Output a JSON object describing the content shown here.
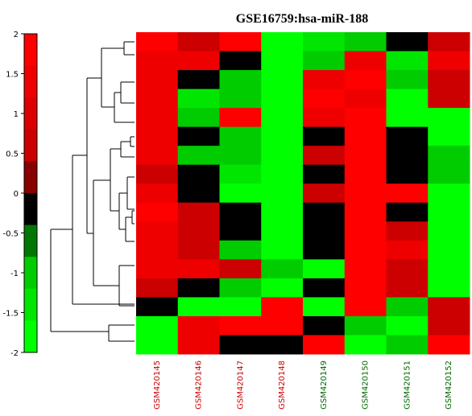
{
  "chart_data": {
    "type": "heatmap",
    "title": "GSE16759:hsa-miR-188",
    "columns": [
      {
        "label": "GSM420145",
        "color": "#cc0000"
      },
      {
        "label": "GSM420146",
        "color": "#cc0000"
      },
      {
        "label": "GSM420147",
        "color": "#cc0000"
      },
      {
        "label": "GSM420148",
        "color": "#cc0000"
      },
      {
        "label": "GSM420149",
        "color": "#006600"
      },
      {
        "label": "GSM420150",
        "color": "#006600"
      },
      {
        "label": "GSM420151",
        "color": "#006600"
      },
      {
        "label": "GSM420152",
        "color": "#006600"
      }
    ],
    "colorbar": {
      "ticks": [
        "2",
        "1.5",
        "1",
        "0.5",
        "0",
        "-0.5",
        "-1",
        "-1.5",
        "-2"
      ],
      "range": [
        -2,
        2
      ],
      "colors": [
        "#ff0000",
        "#ee0000",
        "#dd0000",
        "#cc0000",
        "#880000",
        "#000000",
        "#007700",
        "#00cc00",
        "#00e600",
        "#00ff00"
      ]
    },
    "values": [
      [
        2.0,
        0.6,
        1.6,
        -2.0,
        -1.2,
        -0.8,
        0.0,
        0.6
      ],
      [
        1.3,
        1.3,
        0.0,
        -2.0,
        -0.8,
        1.3,
        -1.4,
        1.4
      ],
      [
        1.3,
        0.0,
        -0.8,
        -2.0,
        1.4,
        1.8,
        -0.8,
        0.7
      ],
      [
        1.3,
        -1.4,
        -0.8,
        -2.0,
        1.8,
        1.5,
        -1.6,
        0.7
      ],
      [
        1.3,
        -0.8,
        1.8,
        -2.0,
        1.4,
        1.7,
        -1.6,
        -1.6
      ],
      [
        1.3,
        0.0,
        -0.8,
        -2.0,
        0.0,
        1.8,
        0.0,
        -1.6
      ],
      [
        1.3,
        -0.8,
        -0.8,
        -2.0,
        0.6,
        1.8,
        0.0,
        -0.8
      ],
      [
        0.6,
        0.0,
        -1.5,
        -2.0,
        0.0,
        1.8,
        0.0,
        -0.8
      ],
      [
        1.3,
        0.0,
        -1.8,
        -2.0,
        0.6,
        1.8,
        1.8,
        -1.6
      ],
      [
        1.8,
        0.6,
        0.0,
        -2.0,
        0.0,
        1.8,
        0.0,
        -1.6
      ],
      [
        1.3,
        0.6,
        0.0,
        -2.0,
        0.0,
        1.8,
        0.6,
        -2.0
      ],
      [
        1.3,
        0.6,
        -0.8,
        -2.0,
        0.0,
        1.8,
        1.3,
        -2.0
      ],
      [
        1.3,
        1.3,
        0.6,
        -0.8,
        -1.6,
        1.8,
        0.6,
        -2.0
      ],
      [
        0.6,
        0.0,
        -0.8,
        -1.6,
        0.0,
        1.8,
        0.6,
        -2.0
      ],
      [
        0.0,
        -1.6,
        -1.6,
        1.8,
        -2.0,
        1.8,
        -0.8,
        0.6
      ],
      [
        -2.0,
        1.3,
        1.8,
        1.8,
        0.0,
        -0.8,
        -2.0,
        0.6
      ],
      [
        -2.0,
        1.3,
        0.0,
        0.0,
        1.8,
        -2.0,
        -0.8,
        1.8
      ]
    ]
  }
}
